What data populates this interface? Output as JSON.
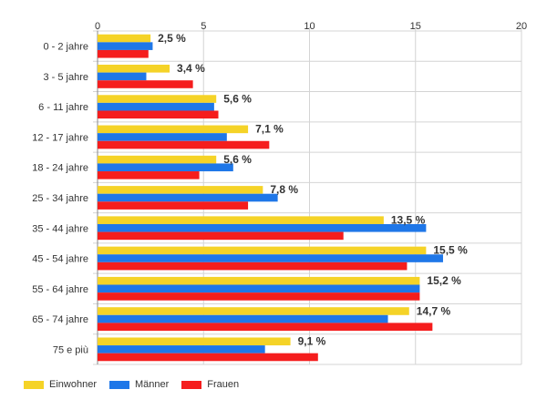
{
  "chart_data": {
    "type": "bar",
    "orientation": "horizontal",
    "categories": [
      "0 - 2 jahre",
      "3 - 5 jahre",
      "6 - 11 jahre",
      "12 - 17 jahre",
      "18 - 24 jahre",
      "25 - 34 jahre",
      "35 - 44 jahre",
      "45 - 54 jahre",
      "55 - 64 jahre",
      "65 - 74 jahre",
      "75 e più"
    ],
    "series": [
      {
        "name": "Einwohner",
        "color": "#f5d327",
        "values": [
          2.5,
          3.4,
          5.6,
          7.1,
          5.6,
          7.8,
          13.5,
          15.5,
          15.2,
          14.7,
          9.1
        ]
      },
      {
        "name": "Männer",
        "color": "#1f77e8",
        "values": [
          2.6,
          2.3,
          5.5,
          6.1,
          6.4,
          8.5,
          15.5,
          16.3,
          15.2,
          13.7,
          7.9
        ]
      },
      {
        "name": "Frauen",
        "color": "#f51d1d",
        "values": [
          2.4,
          4.5,
          5.7,
          8.1,
          4.8,
          7.1,
          11.6,
          14.6,
          15.2,
          15.8,
          10.4
        ]
      }
    ],
    "data_labels": [
      "2,5 %",
      "3,4 %",
      "5,6 %",
      "7,1 %",
      "5,6 %",
      "7,8 %",
      "13,5 %",
      "15,5 %",
      "15,2 %",
      "14,7 %",
      "9,1 %"
    ],
    "x_ticks": [
      "0",
      "5",
      "10",
      "15",
      "20"
    ],
    "xlim": [
      0,
      20
    ],
    "grid": true,
    "legend_position": "bottom-left",
    "title": "",
    "xlabel": "",
    "ylabel": ""
  }
}
